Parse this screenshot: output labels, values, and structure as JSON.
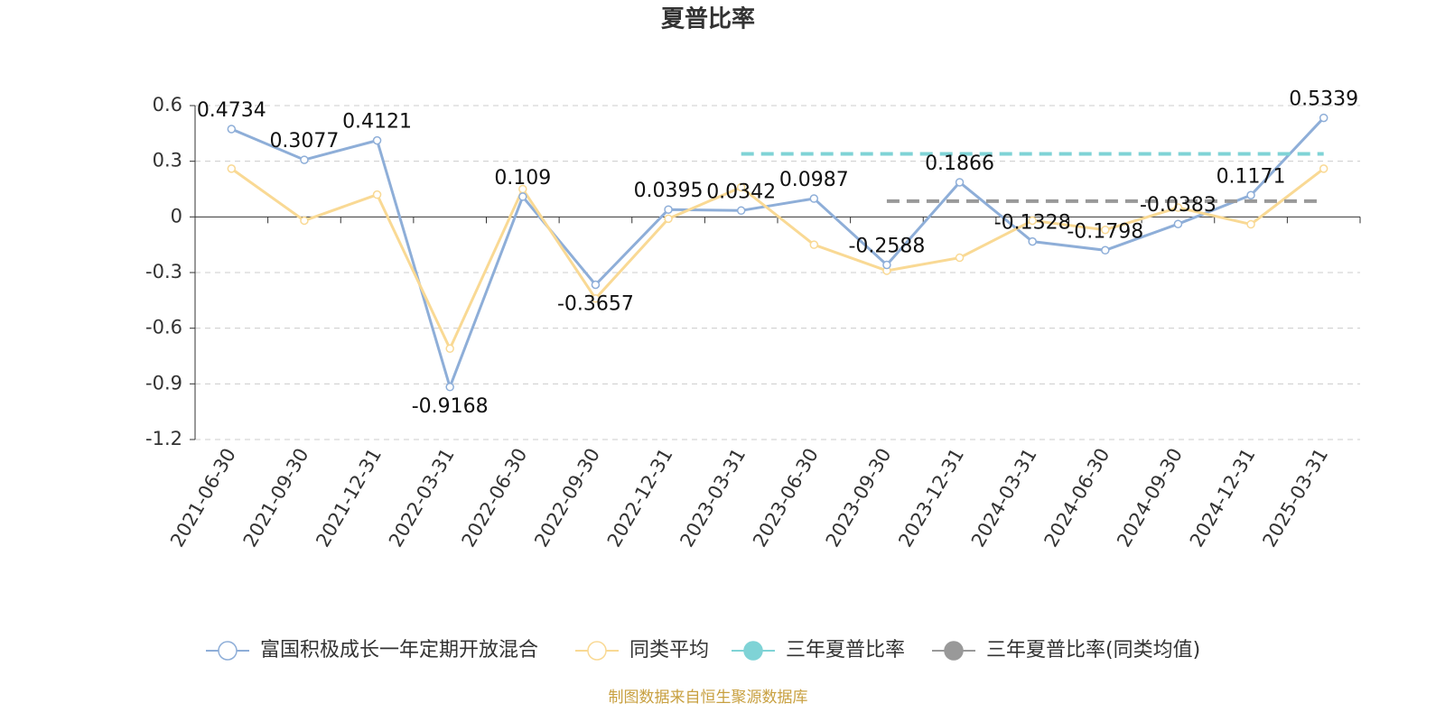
{
  "chart_data": {
    "type": "line",
    "title": "夏普比率",
    "categories": [
      "2021-06-30",
      "2021-09-30",
      "2021-12-31",
      "2022-03-31",
      "2022-06-30",
      "2022-09-30",
      "2022-12-31",
      "2023-03-31",
      "2023-06-30",
      "2023-09-30",
      "2023-12-31",
      "2024-03-31",
      "2024-06-30",
      "2024-09-30",
      "2024-12-31",
      "2025-03-31"
    ],
    "series": [
      {
        "name": "富国积极成长一年定期开放混合",
        "color": "#8eaed8",
        "values": [
          0.4734,
          0.3077,
          0.4121,
          -0.9168,
          0.109,
          -0.3657,
          0.0395,
          0.0342,
          0.0987,
          -0.2588,
          0.1866,
          -0.1328,
          -0.1798,
          -0.0383,
          0.1171,
          0.5339
        ]
      },
      {
        "name": "同类平均",
        "color": "#f9d994",
        "values": [
          0.26,
          -0.02,
          0.12,
          -0.71,
          0.15,
          -0.44,
          -0.01,
          0.16,
          -0.15,
          -0.29,
          -0.22,
          -0.02,
          -0.07,
          0.05,
          -0.04,
          0.26
        ]
      },
      {
        "name": "三年夏普比率",
        "color": "#7fd3d6",
        "values": [
          null,
          null,
          null,
          null,
          null,
          null,
          null,
          0.34,
          0.34,
          0.34,
          0.34,
          0.34,
          0.34,
          0.34,
          0.34,
          0.34
        ]
      },
      {
        "name": "三年夏普比率(同类均值)",
        "color": "#999999",
        "values": [
          null,
          null,
          null,
          null,
          null,
          null,
          null,
          null,
          null,
          0.085,
          0.085,
          0.085,
          0.085,
          0.085,
          0.085,
          0.085
        ]
      }
    ],
    "ylim": [
      -1.2,
      0.6
    ],
    "yticks": [
      -1.2,
      -0.9,
      -0.6,
      -0.3,
      0,
      0.3,
      0.6
    ],
    "grid": true,
    "source": "制图数据来自恒生聚源数据库"
  }
}
